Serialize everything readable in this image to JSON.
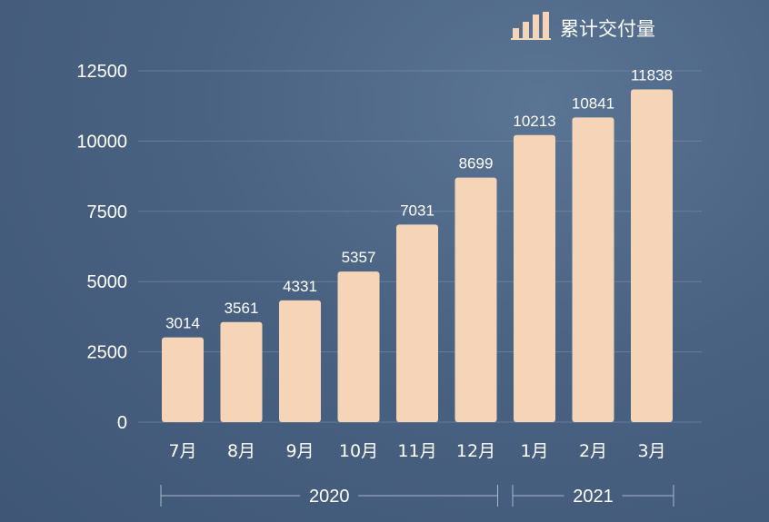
{
  "chart_data": {
    "type": "bar",
    "categories": [
      "7月",
      "8月",
      "9月",
      "10月",
      "11月",
      "12月",
      "1月",
      "2月",
      "3月"
    ],
    "values": [
      3014,
      3561,
      4331,
      5357,
      7031,
      8699,
      10213,
      10841,
      11838
    ],
    "data_labels": [
      "3014",
      "3561",
      "4331",
      "5357",
      "7031",
      "8699",
      "10213",
      "10841",
      "11838"
    ],
    "series": [
      {
        "name": "累计交付量",
        "values": [
          3014,
          3561,
          4331,
          5357,
          7031,
          8699,
          10213,
          10841,
          11838
        ]
      }
    ],
    "y_ticks": [
      "0",
      "2500",
      "5000",
      "7500",
      "10000",
      "12500"
    ],
    "ylim": [
      0,
      12500
    ],
    "x_groups": [
      {
        "label": "2020",
        "from": 0,
        "to": 5
      },
      {
        "label": "2021",
        "from": 6,
        "to": 8
      }
    ],
    "legend": {
      "label": "累计交付量",
      "placement": "top-right"
    },
    "grid": true,
    "colors": {
      "bar": "#f6d4b7",
      "text": "#ffffff",
      "grid": "#7d93ad"
    }
  }
}
